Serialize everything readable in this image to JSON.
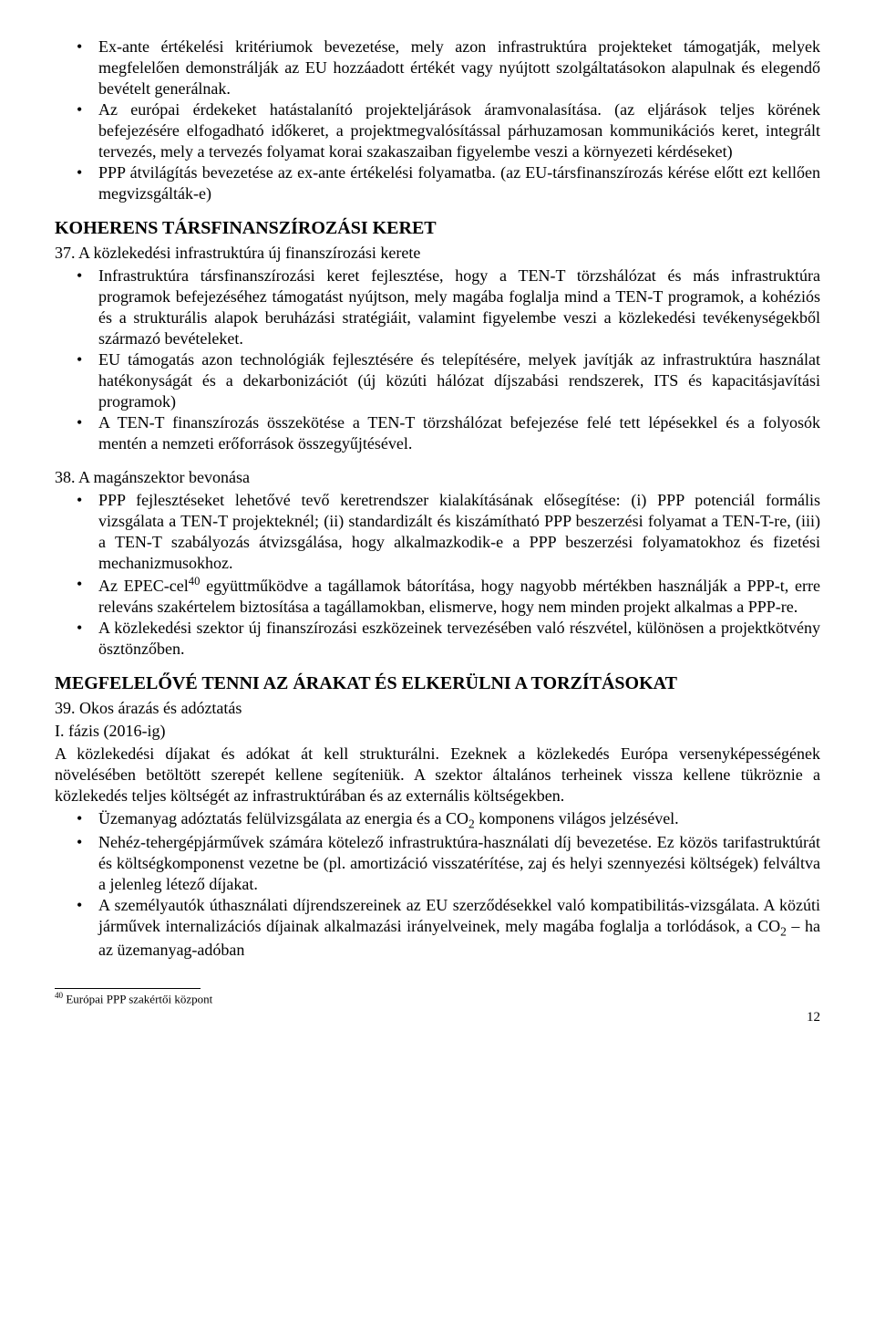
{
  "top_bullets": [
    "Ex-ante értékelési kritériumok bevezetése, mely azon infrastruktúra projekteket támogatják, melyek megfelelően demonstrálják az EU hozzáadott értékét vagy nyújtott szolgáltatásokon alapulnak és elegendő bevételt generálnak.",
    "Az európai érdekeket hatástalanító projekteljárások áramvonalasítása. (az eljárások teljes körének befejezésére elfogadható időkeret, a projektmegvalósítással párhuzamosan kommunikációs keret, integrált tervezés, mely a tervezés folyamat korai szakaszaiban figyelembe veszi a környezeti kérdéseket)",
    "PPP átvilágítás bevezetése az ex-ante értékelési folyamatba. (az EU-társfinanszírozás kérése előtt ezt kellően megvizsgálták-e)"
  ],
  "section1": {
    "heading": "KOHERENS TÁRSFINANSZÍROZÁSI KERET",
    "item37": {
      "num_line": "37. A közlekedési infrastruktúra új finanszírozási kerete",
      "bullets": [
        "Infrastruktúra társfinanszírozási keret fejlesztése, hogy a TEN-T törzshálózat és más infrastruktúra programok befejezéséhez támogatást nyújtson, mely magába foglalja mind a TEN-T programok, a kohéziós és a strukturális alapok beruházási stratégiáit, valamint figyelembe veszi a közlekedési tevékenységekből származó bevételeket.",
        "EU támogatás azon technológiák fejlesztésére és telepítésére, melyek javítják az infrastruktúra használat hatékonyságát és a dekarbonizációt (új közúti hálózat díjszabási rendszerek, ITS és kapacitásjavítási programok)",
        "A TEN-T finanszírozás összekötése a TEN-T törzshálózat befejezése felé tett lépésekkel és a folyosók mentén a nemzeti erőforrások összegyűjtésével."
      ]
    },
    "item38": {
      "num_line": "38. A magánszektor bevonása",
      "bullets_pre": "PPP fejlesztéseket lehetővé tevő keretrendszer kialakításának elősegítése: (i) PPP potenciál formális vizsgálata a TEN-T projekteknél; (ii) standardizált és kiszámítható PPP beszerzési folyamat a TEN-T-re, (iii) a TEN-T szabályozás átvizsgálása, hogy alkalmazkodik-e a PPP beszerzési folyamatokhoz és fizetési mechanizmusokhoz.",
      "bullet_epec_pre": "Az EPEC-cel",
      "bullet_epec_sup": "40",
      "bullet_epec_post": " együttműködve a tagállamok bátorítása, hogy nagyobb mértékben használják a PPP-t, erre releváns szakértelem biztosítása a tagállamokban, elismerve, hogy nem minden projekt alkalmas a PPP-re.",
      "bullet_last": "A közlekedési szektor új finanszírozási eszközeinek tervezésében való részvétel, különösen a projektkötvény ösztönzőben."
    }
  },
  "section2": {
    "heading": "MEGFELELŐVÉ TENNI AZ ÁRAKAT ÉS ELKERÜLNI A TORZÍTÁSOKAT",
    "item39": {
      "num_line": "39. Okos árazás és adóztatás",
      "phase": "I. fázis (2016-ig)",
      "para": "A közlekedési díjakat és adókat át kell strukturálni. Ezeknek a közlekedés Európa versenyképességének növelésében betöltött szerepét kellene segíteniük. A szektor általános terheinek vissza kellene tükröznie a közlekedés teljes költségét az infrastruktúrában és az externális költségekben.",
      "bullet1_pre": "Üzemanyag adóztatás felülvizsgálata az energia és a CO",
      "bullet1_sub": "2",
      "bullet1_post": " komponens világos jelzésével.",
      "bullet2": "Nehéz-tehergépjárművek számára kötelező infrastruktúra-használati díj bevezetése. Ez közös tarifastruktúrát és költségkomponenst vezetne be (pl. amortizáció visszatérítése, zaj és helyi szennyezési költségek) felváltva a jelenleg létező díjakat.",
      "bullet3_pre": "A személyautók úthasználati díjrendszereinek az EU szerződésekkel való kompatibilitás-vizsgálata. A közúti járművek internalizációs díjainak alkalmazási irányelveinek, mely magába foglalja a torlódások, a CO",
      "bullet3_sub": "2",
      "bullet3_post": " – ha az üzemanyag-adóban"
    }
  },
  "footnote": {
    "num": "40",
    "text": " Európai PPP szakértői központ"
  },
  "page_number": "12"
}
